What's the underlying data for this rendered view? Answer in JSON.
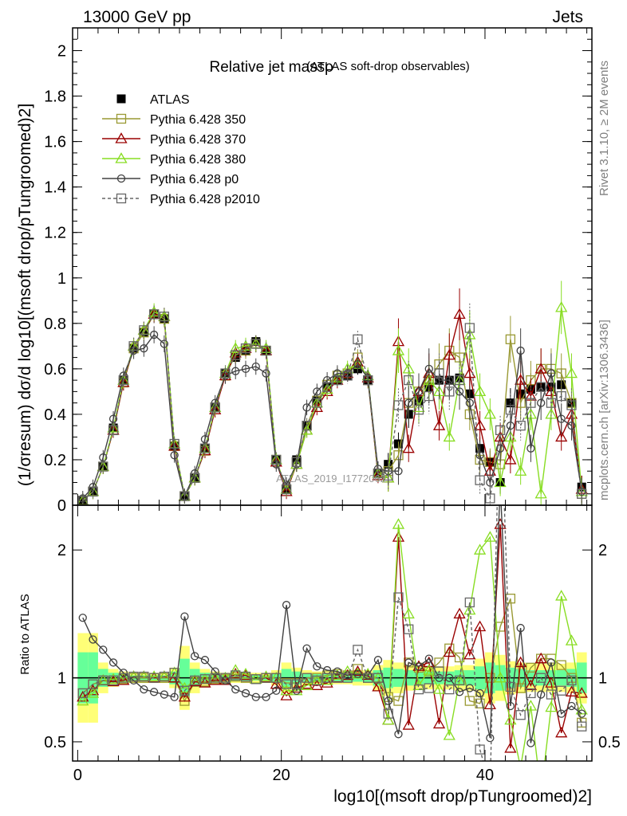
{
  "header": {
    "energy": "13000 GeV pp",
    "category": "Jets",
    "plot_title_main": "Relative jet massρ",
    "plot_title_sub": "(ATLAS soft-drop observables)",
    "watermark": "ATLAS_2019_I1772062",
    "side_top": "Rivet 3.1.10, ≥ 2M events",
    "side_bottom": "mcplots.cern.ch [arXiv:1306.3436]"
  },
  "axes": {
    "y_main": "(1/σresum) dσ/d log10[(msoft drop/pTungroomed)2]",
    "y_ratio": "Ratio to ATLAS",
    "x": "log10[(msoft drop/pTungroomed)2]"
  },
  "chart_data": [
    {
      "type": "line",
      "panel": "main",
      "xlim": [
        -0.5,
        50.5
      ],
      "ylim": [
        0,
        2.1
      ],
      "yticks": [
        0,
        0.2,
        0.4,
        0.6,
        0.8,
        1,
        1.2,
        1.4,
        1.6,
        1.8,
        2
      ],
      "ytick_labels": [
        "0",
        "0.2",
        "0.4",
        "0.6",
        "0.8",
        "1",
        "1.2",
        "1.4",
        "1.6",
        "1.8",
        "2"
      ],
      "xticks": [
        0,
        20,
        40
      ],
      "legend_position": "top-left",
      "x": [
        0.5,
        1.5,
        2.5,
        3.5,
        4.5,
        5.5,
        6.5,
        7.5,
        8.5,
        9.5,
        10.5,
        11.5,
        12.5,
        13.5,
        14.5,
        15.5,
        16.5,
        17.5,
        18.5,
        19.5,
        20.5,
        21.5,
        22.5,
        23.5,
        24.5,
        25.5,
        26.5,
        27.5,
        28.5,
        29.5,
        30.5,
        31.5,
        32.5,
        33.5,
        34.5,
        35.5,
        36.5,
        37.5,
        38.5,
        39.5,
        40.5,
        41.5,
        42.5,
        43.5,
        44.5,
        45.5,
        46.5,
        47.5,
        48.5,
        49.5
      ],
      "series": [
        {
          "name": "ATLAS",
          "color": "#000000",
          "marker": "filled-square",
          "dash": "none",
          "values": [
            0.02,
            0.06,
            0.17,
            0.34,
            0.55,
            0.69,
            0.76,
            0.84,
            0.82,
            0.26,
            0.04,
            0.12,
            0.25,
            0.43,
            0.58,
            0.65,
            0.68,
            0.72,
            0.68,
            0.2,
            0.07,
            0.2,
            0.35,
            0.46,
            0.52,
            0.55,
            0.57,
            0.6,
            0.55,
            0.14,
            0.18,
            0.27,
            0.4,
            0.46,
            0.52,
            0.55,
            0.55,
            0.56,
            0.49,
            0.25,
            0.19,
            0.1,
            0.45,
            0.49,
            0.51,
            0.52,
            0.52,
            0.53,
            0.45,
            0.08
          ]
        },
        {
          "name": "Pythia 6.428 350",
          "color": "#999933",
          "marker": "open-square",
          "dash": "none",
          "values": [
            0.02,
            0.06,
            0.17,
            0.33,
            0.54,
            0.69,
            0.76,
            0.84,
            0.82,
            0.26,
            0.04,
            0.12,
            0.24,
            0.43,
            0.57,
            0.66,
            0.68,
            0.71,
            0.68,
            0.2,
            0.07,
            0.19,
            0.35,
            0.46,
            0.53,
            0.57,
            0.58,
            0.65,
            0.55,
            0.14,
            0.15,
            0.22,
            0.45,
            0.5,
            0.55,
            0.62,
            0.68,
            0.65,
            0.4,
            0.2,
            0.19,
            0.18,
            0.73,
            0.45,
            0.55,
            0.6,
            0.6,
            0.58,
            0.45,
            0.05
          ]
        },
        {
          "name": "Pythia 6.428 370",
          "color": "#9a0000",
          "marker": "open-triangle",
          "dash": "none",
          "values": [
            0.02,
            0.06,
            0.17,
            0.33,
            0.54,
            0.7,
            0.77,
            0.84,
            0.83,
            0.26,
            0.04,
            0.12,
            0.24,
            0.42,
            0.57,
            0.67,
            0.69,
            0.71,
            0.68,
            0.19,
            0.06,
            0.18,
            0.33,
            0.43,
            0.5,
            0.55,
            0.58,
            0.63,
            0.56,
            0.13,
            0.12,
            0.72,
            0.25,
            0.5,
            0.58,
            0.35,
            0.66,
            0.84,
            0.58,
            0.35,
            0.15,
            0.3,
            0.2,
            0.55,
            0.48,
            0.6,
            0.5,
            0.3,
            0.4,
            0.07
          ]
        },
        {
          "name": "Pythia 6.428 380",
          "color": "#88dd22",
          "marker": "open-triangle",
          "dash": "none",
          "values": [
            0.02,
            0.06,
            0.17,
            0.34,
            0.55,
            0.7,
            0.77,
            0.85,
            0.83,
            0.27,
            0.04,
            0.12,
            0.25,
            0.43,
            0.58,
            0.69,
            0.7,
            0.71,
            0.69,
            0.2,
            0.07,
            0.18,
            0.33,
            0.45,
            0.51,
            0.56,
            0.6,
            0.62,
            0.57,
            0.14,
            0.12,
            0.68,
            0.6,
            0.43,
            0.55,
            0.5,
            0.3,
            0.55,
            0.75,
            0.5,
            0.4,
            0.1,
            0.3,
            0.15,
            0.4,
            0.05,
            0.4,
            0.87,
            0.58,
            0.06
          ]
        },
        {
          "name": "Pythia 6.428 p0",
          "color": "#404040",
          "marker": "open-circle",
          "dash": "none",
          "values": [
            0.03,
            0.08,
            0.21,
            0.38,
            0.57,
            0.68,
            0.69,
            0.75,
            0.71,
            0.22,
            0.04,
            0.14,
            0.29,
            0.45,
            0.57,
            0.59,
            0.6,
            0.61,
            0.58,
            0.18,
            0.09,
            0.18,
            0.43,
            0.5,
            0.55,
            0.58,
            0.58,
            0.62,
            0.56,
            0.16,
            0.15,
            0.15,
            0.45,
            0.5,
            0.6,
            0.55,
            0.55,
            0.5,
            0.45,
            0.22,
            0.1,
            0.25,
            0.35,
            0.68,
            0.25,
            0.45,
            0.58,
            0.38,
            0.35,
            0.06
          ]
        },
        {
          "name": "Pythia 6.428 p2010",
          "color": "#666666",
          "marker": "open-square",
          "dash": "dashed",
          "values": [
            0.02,
            0.06,
            0.17,
            0.33,
            0.55,
            0.7,
            0.77,
            0.84,
            0.83,
            0.27,
            0.04,
            0.12,
            0.25,
            0.43,
            0.58,
            0.66,
            0.69,
            0.71,
            0.68,
            0.2,
            0.07,
            0.19,
            0.35,
            0.45,
            0.52,
            0.55,
            0.57,
            0.73,
            0.55,
            0.14,
            0.13,
            0.44,
            0.55,
            0.42,
            0.48,
            0.58,
            0.5,
            0.55,
            0.78,
            0.11,
            0.03,
            0.33,
            0.42,
            0.35,
            0.45,
            0.52,
            0.45,
            0.48,
            0.44,
            0.05
          ]
        }
      ]
    },
    {
      "type": "line",
      "panel": "ratio",
      "xlim": [
        -0.5,
        50.5
      ],
      "ylim": [
        0.35,
        2.35
      ],
      "yticks": [
        0.5,
        1,
        2
      ],
      "ytick_labels": [
        "0.5",
        "1",
        "2"
      ],
      "xticks": [
        0,
        20,
        40
      ],
      "xtick_labels": [
        "0",
        "20",
        "40"
      ],
      "reference_line": 1,
      "bands": {
        "outer_color": "#ffff77",
        "inner_color": "#66ff99",
        "outer_halfwidth": [
          0.35,
          0.35,
          0.12,
          0.07,
          0.05,
          0.04,
          0.04,
          0.04,
          0.04,
          0.08,
          0.25,
          0.12,
          0.07,
          0.05,
          0.04,
          0.04,
          0.04,
          0.04,
          0.04,
          0.06,
          0.12,
          0.08,
          0.06,
          0.05,
          0.05,
          0.05,
          0.05,
          0.06,
          0.06,
          0.1,
          0.14,
          0.12,
          0.1,
          0.09,
          0.09,
          0.09,
          0.09,
          0.1,
          0.1,
          0.15,
          0.2,
          0.18,
          0.13,
          0.12,
          0.11,
          0.11,
          0.11,
          0.11,
          0.12,
          0.2
        ],
        "inner_halfwidth": [
          0.2,
          0.2,
          0.07,
          0.04,
          0.03,
          0.02,
          0.02,
          0.02,
          0.02,
          0.05,
          0.15,
          0.07,
          0.04,
          0.03,
          0.02,
          0.02,
          0.02,
          0.02,
          0.02,
          0.03,
          0.07,
          0.05,
          0.03,
          0.03,
          0.03,
          0.03,
          0.03,
          0.03,
          0.03,
          0.06,
          0.08,
          0.07,
          0.06,
          0.05,
          0.05,
          0.05,
          0.05,
          0.06,
          0.06,
          0.09,
          0.12,
          0.1,
          0.08,
          0.07,
          0.06,
          0.06,
          0.06,
          0.06,
          0.07,
          0.12
        ]
      },
      "x": [
        0.5,
        1.5,
        2.5,
        3.5,
        4.5,
        5.5,
        6.5,
        7.5,
        8.5,
        9.5,
        10.5,
        11.5,
        12.5,
        13.5,
        14.5,
        15.5,
        16.5,
        17.5,
        18.5,
        19.5,
        20.5,
        21.5,
        22.5,
        23.5,
        24.5,
        25.5,
        26.5,
        27.5,
        28.5,
        29.5,
        30.5,
        31.5,
        32.5,
        33.5,
        34.5,
        35.5,
        36.5,
        37.5,
        38.5,
        39.5,
        40.5,
        41.5,
        42.5,
        43.5,
        44.5,
        45.5,
        46.5,
        47.5,
        48.5,
        49.5
      ],
      "series": [
        {
          "name": "Pythia 6.428 350",
          "color": "#999933",
          "marker": "open-square",
          "dash": "none",
          "values": [
            0.88,
            0.95,
            0.98,
            0.98,
            0.99,
            1.0,
            1.0,
            1.0,
            1.0,
            1.0,
            0.82,
            0.97,
            0.97,
            0.99,
            0.99,
            1.01,
            1.0,
            0.99,
            1.0,
            1.0,
            0.96,
            0.96,
            1.0,
            1.0,
            1.02,
            1.03,
            1.02,
            1.07,
            1.0,
            1.0,
            0.85,
            0.82,
            1.12,
            1.08,
            1.05,
            1.12,
            1.23,
            1.16,
            0.82,
            0.8,
            1.0,
            1.4,
            1.62,
            0.92,
            1.08,
            1.15,
            1.15,
            1.1,
            1.0,
            0.65
          ]
        },
        {
          "name": "Pythia 6.428 370",
          "color": "#9a0000",
          "marker": "open-triangle",
          "dash": "none",
          "values": [
            0.85,
            0.9,
            0.98,
            0.97,
            0.98,
            1.01,
            1.01,
            1.0,
            1.01,
            1.0,
            0.85,
            0.97,
            0.96,
            0.98,
            0.98,
            1.03,
            1.02,
            0.99,
            1.0,
            0.95,
            0.86,
            0.92,
            0.95,
            0.94,
            0.96,
            1.0,
            1.02,
            1.05,
            1.02,
            0.93,
            0.67,
            2.1,
            0.63,
            1.09,
            1.12,
            0.64,
            1.2,
            1.5,
            1.18,
            1.4,
            0.79,
            2.2,
            0.45,
            1.12,
            0.94,
            1.15,
            0.96,
            0.57,
            0.89,
            0.88
          ]
        },
        {
          "name": "Pythia 6.428 380",
          "color": "#88dd22",
          "marker": "open-triangle",
          "dash": "none",
          "values": [
            0.82,
            0.88,
            0.98,
            0.99,
            1.0,
            1.01,
            1.01,
            1.01,
            1.01,
            1.04,
            0.92,
            0.98,
            0.99,
            1.0,
            1.0,
            1.06,
            1.03,
            0.99,
            1.01,
            1.0,
            0.9,
            0.9,
            0.94,
            0.98,
            0.98,
            1.02,
            1.05,
            1.03,
            1.03,
            1.0,
            0.67,
            2.2,
            1.5,
            0.94,
            1.06,
            0.91,
            0.55,
            0.98,
            1.53,
            2.0,
            2.1,
            1.0,
            0.67,
            0.3,
            0.78,
            0.1,
            0.77,
            1.64,
            1.29,
            0.75
          ]
        },
        {
          "name": "Pythia 6.428 p0",
          "color": "#404040",
          "marker": "open-circle",
          "dash": "none",
          "values": [
            1.47,
            1.3,
            1.22,
            1.12,
            1.04,
            0.98,
            0.91,
            0.89,
            0.87,
            0.85,
            1.48,
            1.17,
            1.14,
            1.05,
            0.98,
            0.91,
            0.88,
            0.85,
            0.85,
            0.9,
            1.57,
            0.9,
            1.23,
            1.09,
            1.06,
            1.05,
            1.02,
            1.03,
            1.02,
            1.14,
            0.82,
            0.56,
            1.12,
            1.09,
            1.15,
            1.0,
            1.0,
            0.89,
            0.92,
            0.88,
            0.53,
            2.5,
            0.78,
            1.39,
            0.49,
            0.87,
            1.12,
            0.72,
            0.78,
            0.72
          ]
        },
        {
          "name": "Pythia 6.428 p2010",
          "color": "#666666",
          "marker": "open-square",
          "dash": "dashed",
          "values": [
            0.88,
            0.95,
            0.98,
            0.98,
            1.0,
            1.01,
            1.01,
            1.0,
            1.01,
            1.04,
            0.9,
            0.98,
            0.99,
            1.0,
            1.0,
            1.02,
            1.01,
            0.99,
            1.0,
            1.0,
            0.95,
            0.95,
            1.0,
            0.98,
            1.0,
            1.0,
            1.0,
            1.22,
            1.0,
            1.0,
            0.72,
            1.63,
            1.38,
            0.91,
            0.92,
            1.05,
            0.91,
            0.98,
            1.59,
            0.44,
            0.16,
            3.3,
            0.93,
            0.71,
            0.88,
            1.0,
            0.87,
            0.9,
            0.98,
            0.62
          ]
        }
      ]
    }
  ]
}
